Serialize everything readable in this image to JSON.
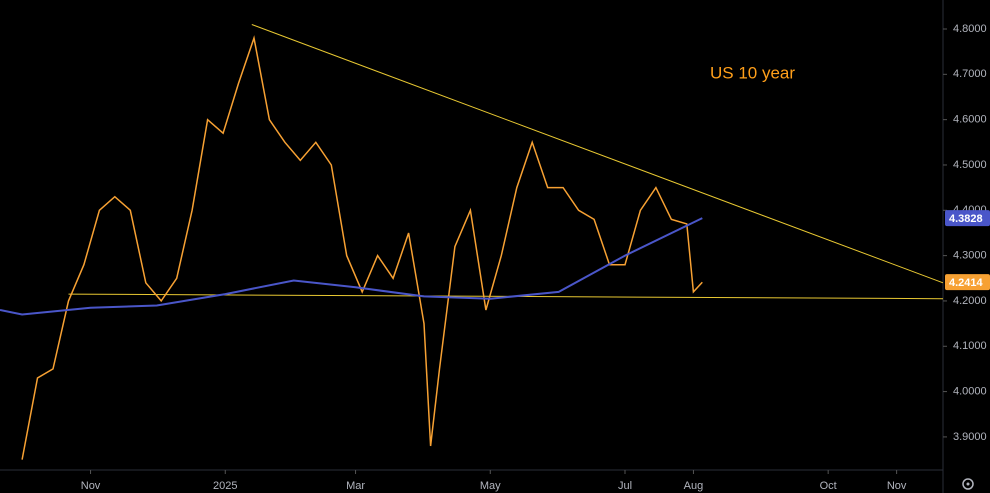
{
  "chart_data": {
    "type": "line",
    "annotation": "US 10 year",
    "xlim": [
      "2024-09-21",
      "2025-11-22"
    ],
    "xticks": [
      {
        "value": "2024-11-01",
        "label": "Nov"
      },
      {
        "value": "2025-01-01",
        "label": "2025"
      },
      {
        "value": "2025-03-01",
        "label": "Mar"
      },
      {
        "value": "2025-05-01",
        "label": "May"
      },
      {
        "value": "2025-07-01",
        "label": "Jul"
      },
      {
        "value": "2025-08-01",
        "label": "Aug"
      },
      {
        "value": "2025-10-01",
        "label": "Oct"
      },
      {
        "value": "2025-11-01",
        "label": "Nov"
      }
    ],
    "ylim": [
      3.827,
      4.864
    ],
    "yticks": [
      {
        "value": 3.9,
        "label": "3.9000"
      },
      {
        "value": 4.0,
        "label": "4.0000"
      },
      {
        "value": 4.1,
        "label": "4.1000"
      },
      {
        "value": 4.2,
        "label": "4.2000"
      },
      {
        "value": 4.3,
        "label": "4.3000"
      },
      {
        "value": 4.4,
        "label": "4.4000"
      },
      {
        "value": 4.5,
        "label": "4.5000"
      },
      {
        "value": 4.6,
        "label": "4.6000"
      },
      {
        "value": 4.7,
        "label": "4.7000"
      },
      {
        "value": 4.8,
        "label": "4.8000"
      }
    ],
    "series": [
      {
        "color": "#f7a133",
        "x": [
          "2024-10-01",
          "2024-10-08",
          "2024-10-15",
          "2024-10-22",
          "2024-10-29",
          "2024-11-05",
          "2024-11-12",
          "2024-11-19",
          "2024-11-26",
          "2024-12-03",
          "2024-12-10",
          "2024-12-17",
          "2024-12-24",
          "2024-12-31",
          "2025-01-07",
          "2025-01-14",
          "2025-01-21",
          "2025-01-28",
          "2025-02-04",
          "2025-02-11",
          "2025-02-18",
          "2025-02-25",
          "2025-03-04",
          "2025-03-11",
          "2025-03-18",
          "2025-03-25",
          "2025-04-01",
          "2025-04-04",
          "2025-04-08",
          "2025-04-15",
          "2025-04-22",
          "2025-04-29",
          "2025-05-06",
          "2025-05-13",
          "2025-05-20",
          "2025-05-27",
          "2025-06-03",
          "2025-06-10",
          "2025-06-17",
          "2025-06-24",
          "2025-07-01",
          "2025-07-08",
          "2025-07-15",
          "2025-07-22",
          "2025-07-29",
          "2025-08-01",
          "2025-08-05"
        ],
        "values": [
          3.85,
          4.03,
          4.05,
          4.2,
          4.28,
          4.4,
          4.43,
          4.4,
          4.24,
          4.2,
          4.25,
          4.4,
          4.6,
          4.57,
          4.68,
          4.78,
          4.6,
          4.55,
          4.51,
          4.55,
          4.5,
          4.3,
          4.22,
          4.3,
          4.25,
          4.35,
          4.15,
          3.88,
          4.05,
          4.32,
          4.4,
          4.18,
          4.3,
          4.45,
          4.55,
          4.45,
          4.45,
          4.4,
          4.38,
          4.28,
          4.28,
          4.4,
          4.45,
          4.38,
          4.37,
          4.22,
          4.2414
        ]
      },
      {
        "color": "#4a56c9",
        "x": [
          "2024-09-21",
          "2024-10-01",
          "2024-11-01",
          "2024-12-01",
          "2025-01-01",
          "2025-02-01",
          "2025-03-01",
          "2025-04-01",
          "2025-05-01",
          "2025-06-01",
          "2025-07-01",
          "2025-08-05"
        ],
        "values": [
          4.18,
          4.17,
          4.185,
          4.19,
          4.215,
          4.245,
          4.23,
          4.21,
          4.205,
          4.22,
          4.3,
          4.3828
        ]
      }
    ],
    "trendlines": [
      {
        "color": "#e8c832",
        "x": [
          "2025-01-13",
          "2025-11-22"
        ],
        "values": [
          4.81,
          4.24
        ]
      },
      {
        "color": "#e8c832",
        "x": [
          "2024-10-22",
          "2025-11-22"
        ],
        "values": [
          4.215,
          4.205
        ]
      }
    ]
  }
}
